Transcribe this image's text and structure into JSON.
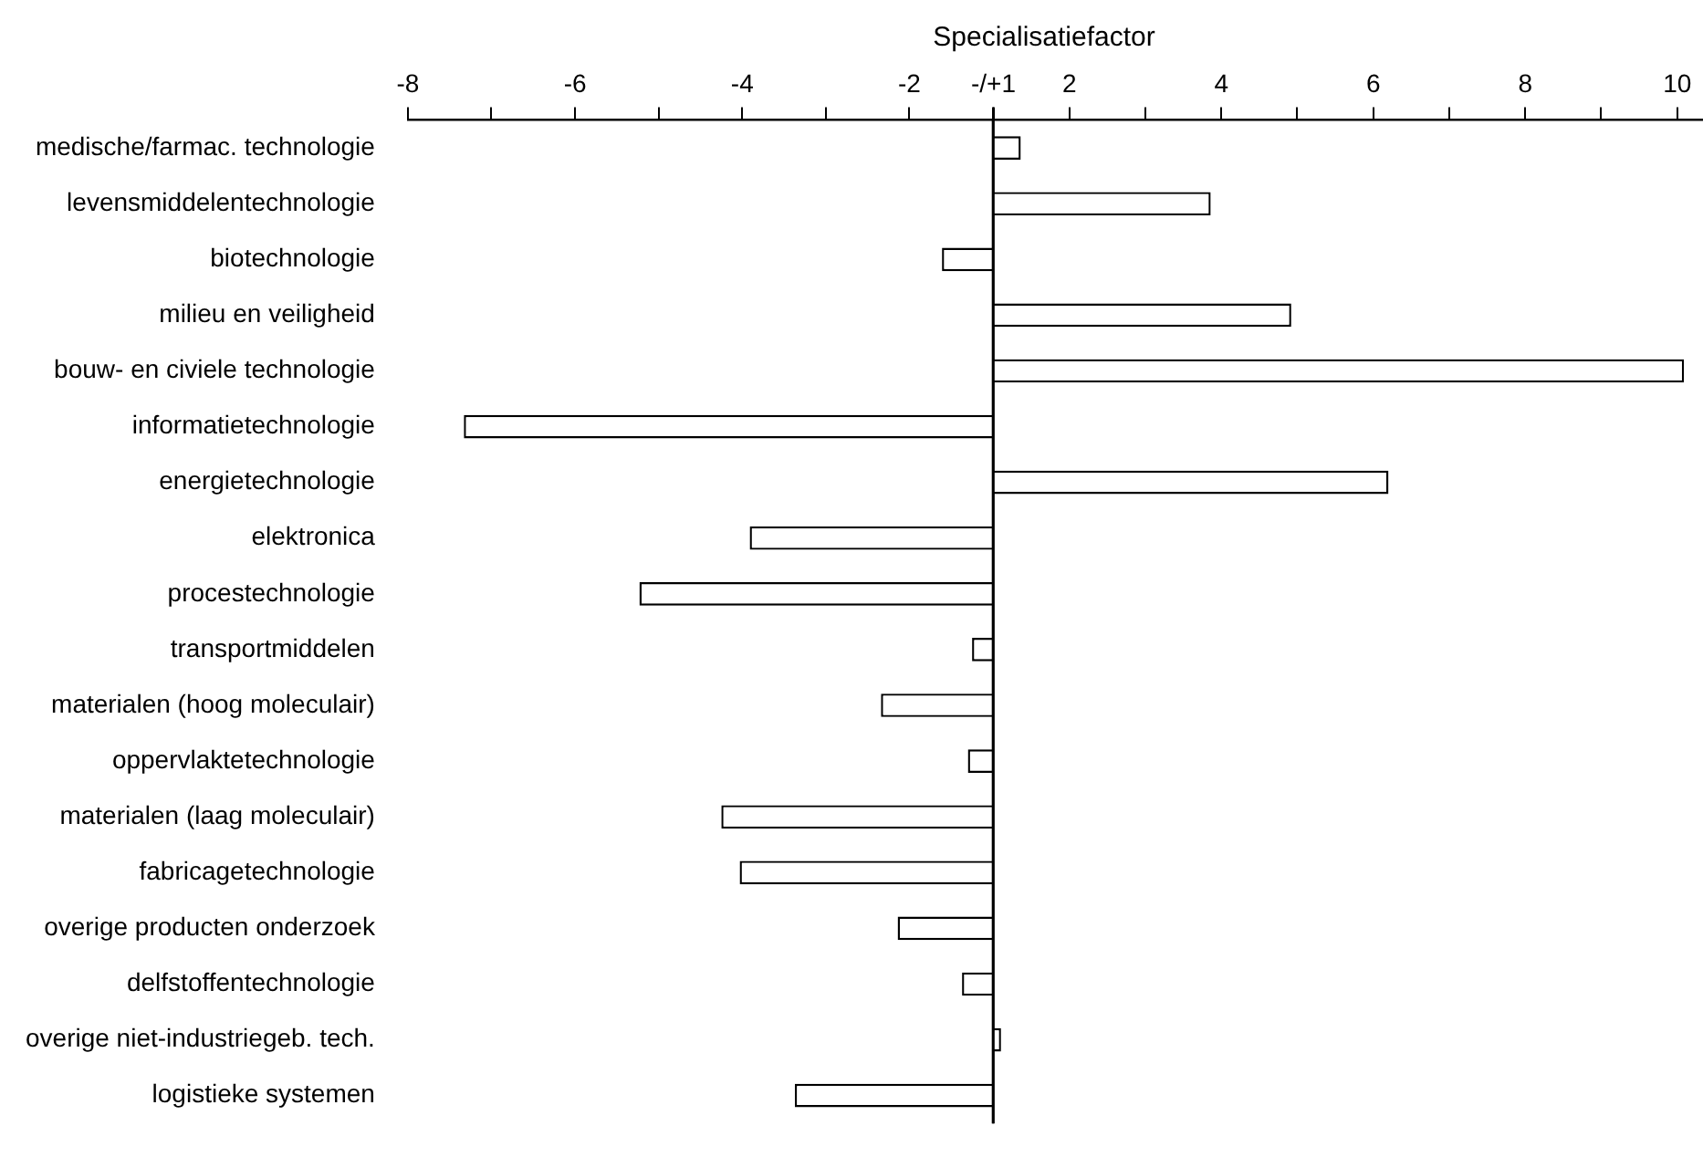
{
  "chart_data": [
    {
      "type": "bar",
      "orientation": "horizontal",
      "categories": [
        "medische/farmac. technologie",
        "levensmiddelentechnologie",
        "biotechnologie",
        "milieu en veiligheid",
        "bouw- en civiele technologie",
        "informatietechnologie",
        "energietechnologie",
        "elektronica",
        "procestechnologie",
        "transportmiddelen",
        "materialen (hoog moleculair)",
        "oppervlaktetechnologie",
        "materialen (laag moleculair)",
        "fabricagetechnologie",
        "overige producten onderzoek",
        "delfstoffentechnologie",
        "overige niet-industriegeb. tech.",
        "logistieke systemen"
      ],
      "values": [
        null,
        null,
        -1.61,
        null,
        null,
        -7.33,
        null,
        -3.91,
        -5.23,
        -1.25,
        -2.34,
        -1.3,
        -4.25,
        -4.03,
        -2.14,
        -1.37,
        null,
        -3.37
      ],
      "color": "#ffffff",
      "xlim": [
        -8,
        -1
      ],
      "xticks": [
        -8,
        {
          "value": -7,
          "label": null
        },
        -6,
        {
          "value": -5,
          "label": null
        },
        -4,
        {
          "value": -3,
          "label": null
        },
        -2,
        {
          "value": -1,
          "label": null
        }
      ],
      "grid": false
    },
    {
      "type": "bar",
      "orientation": "horizontal",
      "xlabel": "Specialisatiefactor",
      "categories": [
        null,
        null,
        null,
        null,
        null,
        null,
        null,
        null,
        null,
        null,
        null,
        null,
        null,
        null,
        null,
        null,
        null,
        null
      ],
      "values": [
        1.36,
        3.86,
        null,
        4.92,
        10.09,
        null,
        6.2,
        null,
        null,
        null,
        null,
        null,
        null,
        null,
        null,
        null,
        1.1,
        null
      ],
      "color": "#ffffff",
      "xlim": [
        1,
        10.7
      ],
      "xticks": [
        {
          "value": 1,
          "label": "-/+1"
        },
        2,
        {
          "value": 3,
          "label": null
        },
        4,
        {
          "value": 5,
          "label": null
        },
        6,
        {
          "value": 7,
          "label": null
        },
        8,
        {
          "value": 9,
          "label": null
        },
        10
      ],
      "tick_labels": "x",
      "grid": false
    }
  ]
}
